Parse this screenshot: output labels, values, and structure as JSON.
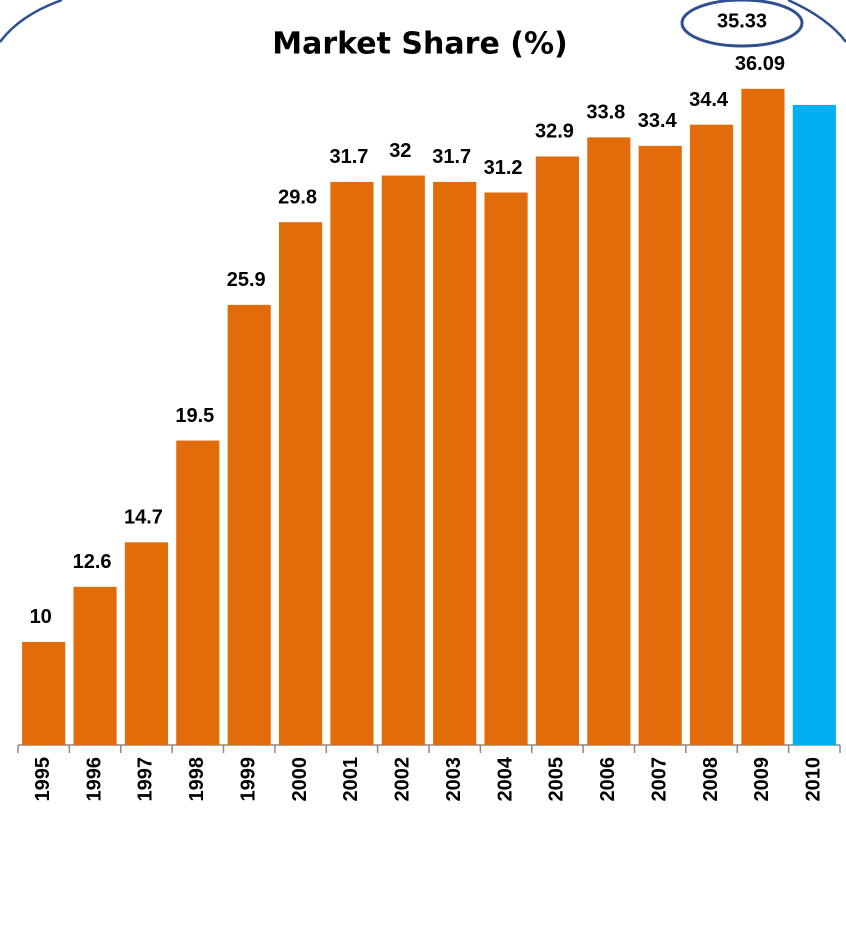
{
  "chart_data": {
    "type": "bar",
    "title": "Market Share (%)",
    "categories": [
      "1995",
      "1996",
      "1997",
      "1998",
      "1999",
      "2000",
      "2001",
      "2002",
      "2003",
      "2004",
      "2005",
      "2006",
      "2007",
      "2008",
      "2009",
      "2010"
    ],
    "values": [
      10,
      12.6,
      14.7,
      19.5,
      25.9,
      29.8,
      31.7,
      32,
      31.7,
      31.2,
      32.9,
      33.8,
      33.4,
      34.4,
      36.09,
      35.33
    ],
    "colors": [
      "#e36c0a",
      "#e36c0a",
      "#e36c0a",
      "#e36c0a",
      "#e36c0a",
      "#e36c0a",
      "#e36c0a",
      "#e36c0a",
      "#e36c0a",
      "#e36c0a",
      "#e36c0a",
      "#e36c0a",
      "#e36c0a",
      "#e36c0a",
      "#e36c0a",
      "#00b0f0"
    ],
    "ylim": [
      5.14,
      40.28
    ],
    "grid": false
  }
}
